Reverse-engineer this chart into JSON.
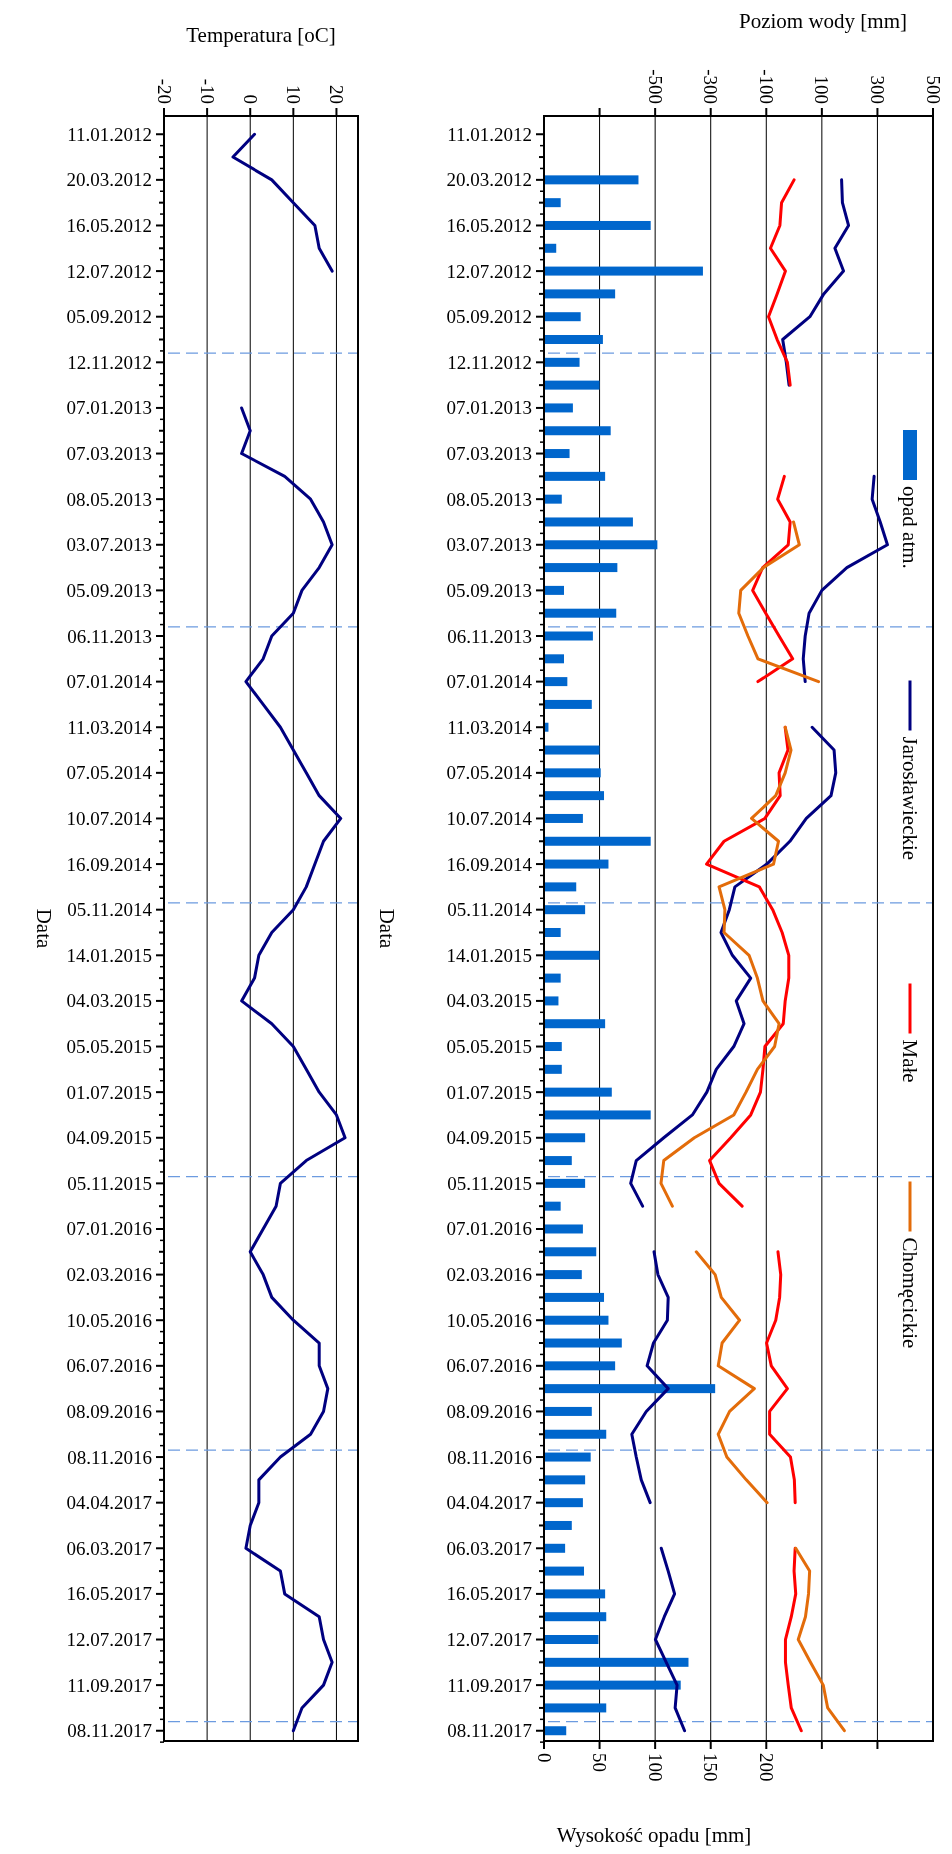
{
  "chart_data": [
    {
      "type": "line",
      "orientation": "horizontal",
      "x2label": "Temperatura [oC]",
      "ylabel": "Data",
      "categories": [
        "11.01.2012",
        null,
        "20.03.2012",
        null,
        "16.05.2012",
        null,
        "12.07.2012",
        null,
        "05.09.2012",
        null,
        "12.11.2012",
        null,
        "07.01.2013",
        null,
        "07.03.2013",
        null,
        "08.05.2013",
        null,
        "03.07.2013",
        null,
        "05.09.2013",
        null,
        "06.11.2013",
        null,
        "07.01.2014",
        null,
        "11.03.2014",
        null,
        "07.05.2014",
        null,
        "10.07.2014",
        null,
        "16.09.2014",
        null,
        "05.11.2014",
        null,
        "14.01.2015",
        null,
        "04.03.2015",
        null,
        "05.05.2015",
        null,
        "01.07.2015",
        null,
        "04.09.2015",
        null,
        "05.11.2015",
        null,
        "07.01.2016",
        null,
        "02.03.2016",
        null,
        "10.05.2016",
        null,
        "06.07.2016",
        null,
        "08.09.2016",
        null,
        "08.11.2016",
        null,
        "04.04.2017",
        null,
        "06.03.2017",
        null,
        "16.05.2017",
        null,
        "12.07.2017",
        null,
        "11.09.2017",
        null,
        "08.11.2017"
      ],
      "x2lim": [
        -20,
        25
      ],
      "x2ticks": [
        -20,
        -10,
        0,
        10,
        20
      ],
      "grid": true,
      "series": [
        {
          "color": "#000080",
          "axis": "x2",
          "values": [
            1,
            -4,
            5,
            10,
            15,
            16,
            19,
            null,
            null,
            null,
            null,
            null,
            -2,
            0,
            -2,
            8,
            14,
            17,
            19,
            16,
            12,
            10,
            5,
            3,
            -1,
            3,
            7,
            10,
            13,
            16,
            21,
            17,
            15,
            13,
            10,
            5,
            2,
            1,
            -2,
            5,
            10,
            13,
            16,
            20,
            22,
            13,
            7,
            6,
            3,
            0,
            3,
            5,
            10,
            16,
            16,
            18,
            17,
            14,
            7,
            2,
            2,
            0,
            -1,
            7,
            8,
            16,
            17,
            19,
            17,
            12,
            10
          ]
        }
      ]
    },
    {
      "type": "bar",
      "orientation": "horizontal",
      "xlabel": "Wysokość opadu [mm]",
      "x2label": "Poziom wody [mm]",
      "ylabel": "Data",
      "categories": [
        "11.01.2012",
        null,
        "20.03.2012",
        null,
        "16.05.2012",
        null,
        "12.07.2012",
        null,
        "05.09.2012",
        null,
        "12.11.2012",
        null,
        "07.01.2013",
        null,
        "07.03.2013",
        null,
        "08.05.2013",
        null,
        "03.07.2013",
        null,
        "05.09.2013",
        null,
        "06.11.2013",
        null,
        "07.01.2014",
        null,
        "11.03.2014",
        null,
        "07.05.2014",
        null,
        "10.07.2014",
        null,
        "16.09.2014",
        null,
        "05.11.2014",
        null,
        "14.01.2015",
        null,
        "04.03.2015",
        null,
        "05.05.2015",
        null,
        "01.07.2015",
        null,
        "04.09.2015",
        null,
        "05.11.2015",
        null,
        "07.01.2016",
        null,
        "02.03.2016",
        null,
        "10.05.2016",
        null,
        "06.07.2016",
        null,
        "08.09.2016",
        null,
        "08.11.2016",
        null,
        "04.04.2017",
        null,
        "06.03.2017",
        null,
        "16.05.2017",
        null,
        "12.07.2017",
        null,
        "11.09.2017",
        null,
        "08.11.2017"
      ],
      "xlim": [
        0,
        350
      ],
      "xticks": [
        0,
        50,
        100,
        150,
        200,
        {
          "value": 250,
          "label": null
        },
        {
          "value": 300,
          "label": null
        }
      ],
      "x2lim": [
        -900,
        500
      ],
      "x2ticks": [
        {
          "value": -700,
          "label": null
        },
        -500,
        -300,
        -100,
        100,
        300,
        500
      ],
      "grid": true,
      "legend": "right",
      "series": [
        {
          "name": "opad atm.",
          "color": "#0066cc",
          "values": [
            null,
            null,
            85,
            15,
            96,
            11,
            143,
            64,
            33,
            53,
            32,
            50,
            26,
            60,
            23,
            55,
            16,
            80,
            102,
            66,
            18,
            65,
            44,
            18,
            21,
            43,
            4,
            50,
            51,
            54,
            35,
            96,
            58,
            29,
            37,
            15,
            50,
            15,
            13,
            55,
            16,
            16,
            61,
            96,
            37,
            25,
            37,
            15,
            35,
            47,
            34,
            54,
            58,
            70,
            64,
            154,
            43,
            56,
            42,
            37,
            35,
            25,
            19,
            36,
            55,
            56,
            49,
            130,
            123,
            56,
            20
          ]
        },
        {
          "name": "Jarosławieckie",
          "type": "line",
          "axis": "x2",
          "color": "#000080",
          "values": [
            null,
            null,
            171,
            174,
            196,
            147,
            178,
            107,
            57,
            -41,
            -28,
            -18,
            null,
            null,
            null,
            288,
            281,
            310,
            336,
            190,
            100,
            54,
            40,
            33,
            40,
            null,
            65,
            144,
            150,
            133,
            44,
            -15,
            -98,
            -213,
            -233,
            -263,
            -222,
            -156,
            -208,
            -180,
            -217,
            -280,
            -314,
            -366,
            -469,
            -568,
            -588,
            -545,
            null,
            -504,
            -490,
            -453,
            -456,
            -506,
            -529,
            -453,
            -532,
            -584,
            -568,
            -550,
            -518,
            null,
            -478,
            -453,
            -430,
            -467,
            -499,
            -460,
            -421,
            -428,
            -394
          ]
        },
        {
          "name": "Małe",
          "type": "line",
          "axis": "x2",
          "color": "#ff0000",
          "values": [
            null,
            null,
            0,
            -45,
            -51,
            -85,
            -31,
            -61,
            -92,
            -61,
            -24,
            -14,
            null,
            null,
            null,
            -35,
            -59,
            -14,
            -21,
            -113,
            -149,
            -102,
            -54,
            -5,
            -130,
            null,
            -32,
            -22,
            -54,
            -50,
            -105,
            -252,
            -315,
            -125,
            -77,
            -43,
            -19,
            -19,
            -32,
            -39,
            -105,
            -112,
            -121,
            -156,
            -228,
            -304,
            -270,
            -187,
            null,
            -58,
            -48,
            -52,
            -66,
            -99,
            -82,
            -24,
            -88,
            -88,
            -13,
            1,
            4,
            null,
            4,
            0,
            6,
            -10,
            -31,
            -31,
            -21,
            -10,
            26
          ]
        },
        {
          "name": "Chomęcickie",
          "type": "line",
          "axis": "x2",
          "color": "#e36c0a",
          "values": [
            null,
            null,
            null,
            null,
            null,
            null,
            null,
            null,
            null,
            null,
            null,
            null,
            null,
            null,
            null,
            null,
            null,
            -2,
            19,
            -110,
            -192,
            -199,
            -166,
            -130,
            88,
            null,
            -32,
            -11,
            -32,
            -66,
            -153,
            -56,
            -74,
            -270,
            -249,
            -252,
            -162,
            -132,
            -112,
            -54,
            -70,
            -132,
            -173,
            -217,
            -359,
            -469,
            -479,
            -438,
            null,
            -352,
            -284,
            -262,
            -196,
            -259,
            -273,
            -143,
            -232,
            -273,
            -242,
            -172,
            -97,
            null,
            6,
            56,
            52,
            41,
            15,
            59,
            105,
            121,
            181
          ]
        }
      ]
    }
  ]
}
